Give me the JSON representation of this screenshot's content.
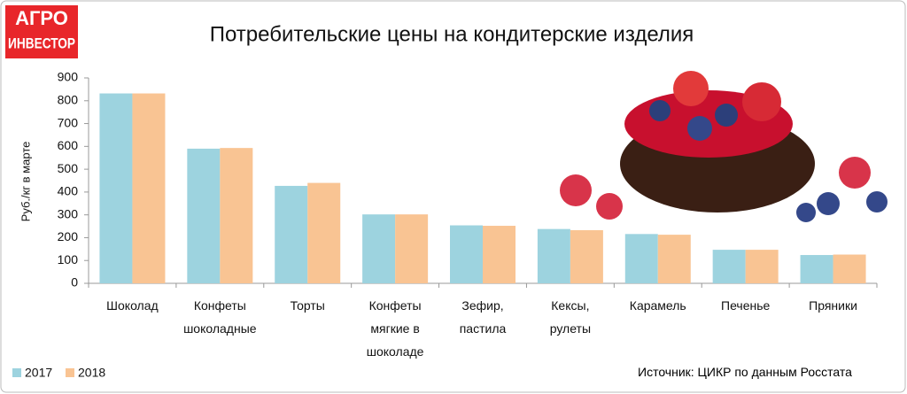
{
  "logo": [
    "АГРО",
    "ИНВЕСТОР"
  ],
  "chart_data": {
    "type": "bar",
    "title": "Потребительские цены на кондитерские изделия",
    "y_label": "Руб./кг в марте",
    "source": "Источник: ЦИКР по данным Росстата",
    "categories": [
      "Шоколад",
      "Конфеты шоколадные",
      "Торты",
      "Конфеты мягкие в шоколаде",
      "Зефир, пастила",
      "Кексы, рулеты",
      "Карамель",
      "Печенье",
      "Пряники"
    ],
    "series": [
      {
        "name": "2017",
        "color": "#9dd3df",
        "values": [
          832,
          590,
          427,
          302,
          254,
          238,
          216,
          147,
          124
        ]
      },
      {
        "name": "2018",
        "color": "#f9c493",
        "values": [
          832,
          593,
          440,
          302,
          252,
          233,
          213,
          147,
          126
        ]
      }
    ],
    "ylim": [
      0,
      900
    ],
    "yticks": [
      0,
      100,
      200,
      300,
      400,
      500,
      600,
      700,
      800,
      900
    ],
    "legend": "bottom-left"
  }
}
